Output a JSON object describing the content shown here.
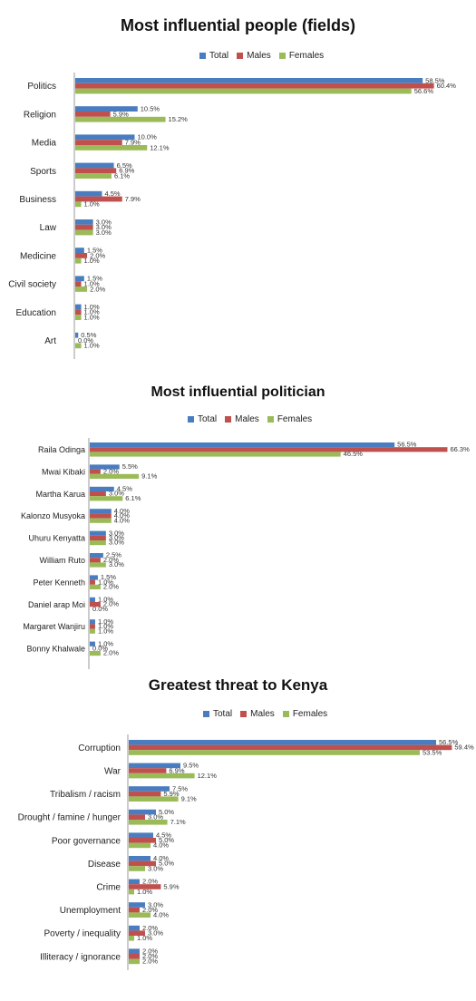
{
  "colors": {
    "total": "#4a7dbf",
    "males": "#c0504d",
    "females": "#9bbb59"
  },
  "legend": {
    "total": "Total",
    "males": "Males",
    "females": "Females"
  },
  "chart_data": [
    {
      "type": "bar",
      "title": "Most influential people (fields)",
      "categories": [
        "Politics",
        "Religion",
        "Media",
        "Sports",
        "Business",
        "Law",
        "Medicine",
        "Civil society",
        "Education",
        "Art"
      ],
      "series": [
        {
          "name": "Total",
          "values": [
            58.5,
            10.5,
            10.0,
            6.5,
            4.5,
            3.0,
            1.5,
            1.5,
            1.0,
            0.5
          ]
        },
        {
          "name": "Males",
          "values": [
            60.4,
            5.9,
            7.9,
            6.9,
            7.9,
            3.0,
            2.0,
            1.0,
            1.0,
            0.0
          ]
        },
        {
          "name": "Females",
          "values": [
            56.6,
            15.2,
            12.1,
            6.1,
            1.0,
            3.0,
            1.0,
            2.0,
            1.0,
            1.0
          ]
        }
      ],
      "value_format": "0.0%",
      "orientation": "horizontal",
      "grid": false
    },
    {
      "type": "bar",
      "title": "Most influential politician",
      "categories": [
        "Raila Odinga",
        "Mwai Kibaki",
        "Martha Karua",
        "Kalonzo Musyoka",
        "Uhuru Kenyatta",
        "William Ruto",
        "Peter Kenneth",
        "Daniel arap Moi",
        "Margaret Wanjiru",
        "Bonny Khalwale"
      ],
      "series": [
        {
          "name": "Total",
          "values": [
            56.5,
            5.5,
            4.5,
            4.0,
            3.0,
            2.5,
            1.5,
            1.0,
            1.0,
            1.0
          ]
        },
        {
          "name": "Males",
          "values": [
            66.3,
            2.0,
            3.0,
            4.0,
            3.0,
            2.0,
            1.0,
            2.0,
            1.0,
            0.0
          ]
        },
        {
          "name": "Females",
          "values": [
            46.5,
            9.1,
            6.1,
            4.0,
            3.0,
            3.0,
            2.0,
            0.0,
            1.0,
            2.0
          ]
        }
      ],
      "value_format": "0.0%",
      "orientation": "horizontal",
      "grid": false
    },
    {
      "type": "bar",
      "title": "Greatest threat to Kenya",
      "categories": [
        "Corruption",
        "War",
        "Tribalism / racism",
        "Drought / famine / hunger",
        "Poor governance",
        "Disease",
        "Crime",
        "Unemployment",
        "Poverty / inequality",
        "Illiteracy / ignorance"
      ],
      "series": [
        {
          "name": "Total",
          "values": [
            56.5,
            9.5,
            7.5,
            5.0,
            4.5,
            4.0,
            2.0,
            3.0,
            2.0,
            2.0
          ]
        },
        {
          "name": "Males",
          "values": [
            59.4,
            6.9,
            5.9,
            3.0,
            5.0,
            5.0,
            5.9,
            2.0,
            3.0,
            2.0
          ]
        },
        {
          "name": "Females",
          "values": [
            53.5,
            12.1,
            9.1,
            7.1,
            4.0,
            3.0,
            1.0,
            4.0,
            1.0,
            2.0
          ]
        }
      ],
      "value_format": "0.0%",
      "orientation": "horizontal",
      "grid": false
    }
  ]
}
